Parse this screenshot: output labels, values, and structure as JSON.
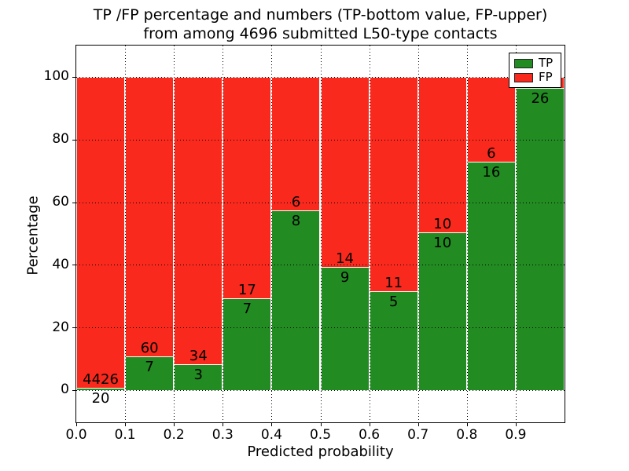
{
  "chart_data": {
    "type": "bar",
    "stacked": true,
    "title_line1": "TP /FP percentage and numbers (TP-bottom value, FP-upper)",
    "title_line2": "from among 4696 submitted L50-type contacts",
    "xlabel": "Predicted probability",
    "ylabel": "Percentage",
    "xlim": [
      0.0,
      1.0
    ],
    "ylim": [
      -10.3,
      110.0
    ],
    "x_ticks": [
      "0.0",
      "0.1",
      "0.2",
      "0.3",
      "0.4",
      "0.5",
      "0.6",
      "0.7",
      "0.8",
      "0.9"
    ],
    "y_ticks": [
      "0",
      "20",
      "40",
      "60",
      "80",
      "100"
    ],
    "grid": "dotted",
    "colors": {
      "tp": "#228B22",
      "fp": "#F92A1D",
      "bar_edge": "#ffffff"
    },
    "legend": {
      "position": "upper right",
      "entries": [
        {
          "label": "TP",
          "color": "#228B22"
        },
        {
          "label": "FP",
          "color": "#F92A1D"
        }
      ]
    },
    "bins": [
      {
        "range": [
          0.0,
          0.1
        ],
        "tp_count": "20",
        "fp_count": "4426",
        "tp_pct": 0.45
      },
      {
        "range": [
          0.1,
          0.2
        ],
        "tp_count": "7",
        "fp_count": "60",
        "tp_pct": 10.45
      },
      {
        "range": [
          0.2,
          0.3
        ],
        "tp_count": "3",
        "fp_count": "34",
        "tp_pct": 8.11
      },
      {
        "range": [
          0.3,
          0.4
        ],
        "tp_count": "7",
        "fp_count": "17",
        "tp_pct": 29.17
      },
      {
        "range": [
          0.4,
          0.5
        ],
        "tp_count": "8",
        "fp_count": "6",
        "tp_pct": 57.14
      },
      {
        "range": [
          0.5,
          0.6
        ],
        "tp_count": "9",
        "fp_count": "14",
        "tp_pct": 39.13
      },
      {
        "range": [
          0.6,
          0.7
        ],
        "tp_count": "5",
        "fp_count": "11",
        "tp_pct": 31.25
      },
      {
        "range": [
          0.7,
          0.8
        ],
        "tp_count": "10",
        "fp_count": "10",
        "tp_pct": 50.0
      },
      {
        "range": [
          0.8,
          0.9
        ],
        "tp_count": "16",
        "fp_count": "6",
        "tp_pct": 72.73
      },
      {
        "range": [
          0.9,
          1.0
        ],
        "tp_count": "26",
        "fp_count": "",
        "tp_pct": 96.3
      }
    ]
  }
}
